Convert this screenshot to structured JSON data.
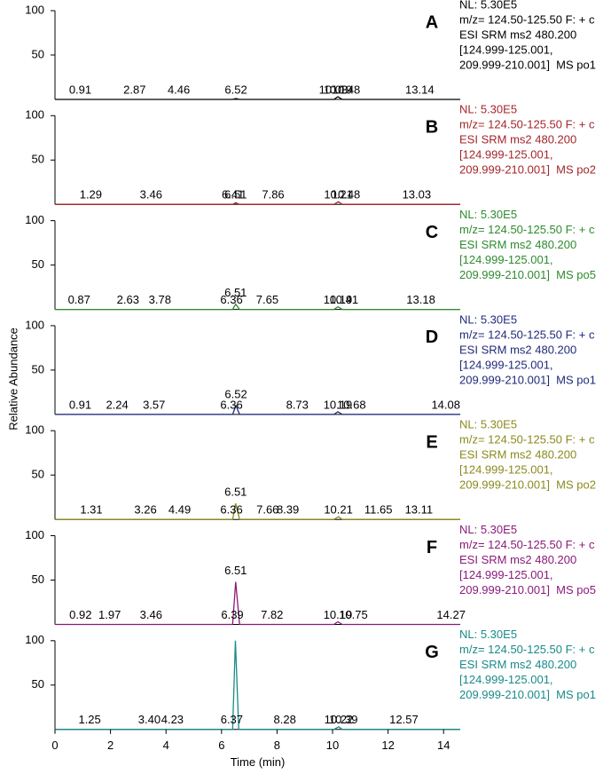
{
  "chart_data": [
    {
      "type": "line",
      "label": "A",
      "color": "#000000",
      "info": [
        "NL: 5.30E5",
        "m/z= 124.50-125.50 F: + c",
        "ESI SRM ms2 480.200",
        "[124.999-125.001,",
        "209.999-210.001]  MS po1"
      ],
      "peaks": [
        0.91,
        2.87,
        4.46,
        6.52,
        10.03,
        10.19,
        10.48,
        13.14
      ],
      "x": [
        0,
        6.4,
        6.52,
        6.65,
        10.05,
        10.19,
        10.35,
        14.6
      ],
      "values": [
        0,
        0,
        1,
        0,
        0,
        3,
        0,
        0
      ],
      "xlim": [
        0,
        14.6
      ],
      "ylim": [
        0,
        100
      ],
      "yticks": [
        50,
        100
      ]
    },
    {
      "type": "line",
      "label": "B",
      "color": "#a3262a",
      "info": [
        "NL: 5.30E5",
        "m/z= 124.50-125.50 F: + c",
        "ESI SRM ms2 480.200",
        "[124.999-125.001,",
        "209.999-210.001]  MS po2"
      ],
      "peaks": [
        1.29,
        3.46,
        6.41,
        6.51,
        7.86,
        10.21,
        10.48,
        13.03
      ],
      "x": [
        0,
        6.4,
        6.51,
        6.65,
        10.05,
        10.21,
        10.35,
        14.6
      ],
      "values": [
        0,
        0,
        2,
        0,
        0,
        3,
        0,
        0
      ],
      "xlim": [
        0,
        14.6
      ],
      "ylim": [
        0,
        100
      ],
      "yticks": [
        50,
        100
      ]
    },
    {
      "type": "line",
      "label": "C",
      "color": "#2e8b2e",
      "info": [
        "NL: 5.30E5",
        "m/z= 124.50-125.50 F: + c",
        "ESI SRM ms2 480.200",
        "[124.999-125.001,",
        "209.999-210.001]  MS po5"
      ],
      "peaks": [
        0.87,
        2.63,
        3.78,
        6.36,
        6.51,
        7.65,
        10.19,
        10.41,
        13.18
      ],
      "x": [
        0,
        6.4,
        6.51,
        6.65,
        10.05,
        10.19,
        10.35,
        14.6
      ],
      "values": [
        0,
        0,
        6,
        0,
        0,
        3,
        0,
        0
      ],
      "xlim": [
        0,
        14.6
      ],
      "ylim": [
        0,
        100
      ],
      "yticks": [
        50,
        100
      ]
    },
    {
      "type": "line",
      "label": "D",
      "color": "#1f2a7a",
      "info": [
        "NL: 5.30E5",
        "m/z= 124.50-125.50 F: + c",
        "ESI SRM ms2 480.200",
        "[124.999-125.001,",
        "209.999-210.001]  MS po1"
      ],
      "peaks": [
        0.91,
        2.24,
        3.57,
        6.36,
        6.52,
        8.73,
        10.19,
        10.68,
        14.08
      ],
      "x": [
        0,
        6.4,
        6.52,
        6.65,
        10.05,
        10.19,
        10.35,
        14.6
      ],
      "values": [
        0,
        0,
        10,
        0,
        0,
        3,
        0,
        0
      ],
      "xlim": [
        0,
        14.6
      ],
      "ylim": [
        0,
        100
      ],
      "yticks": [
        50,
        100
      ],
      "ylabel": "Relative Abundance"
    },
    {
      "type": "line",
      "label": "E",
      "color": "#8a8a1e",
      "info": [
        "NL: 5.30E5",
        "m/z= 124.50-125.50 F: + c",
        "ESI SRM ms2 480.200",
        "[124.999-125.001,",
        "209.999-210.001]  MS po2"
      ],
      "peaks": [
        1.31,
        3.26,
        4.49,
        6.36,
        6.51,
        7.66,
        8.39,
        10.21,
        11.65,
        13.11
      ],
      "x": [
        0,
        6.4,
        6.51,
        6.65,
        10.05,
        10.21,
        10.35,
        14.6
      ],
      "values": [
        0,
        0,
        18,
        0,
        0,
        3,
        0,
        0
      ],
      "xlim": [
        0,
        14.6
      ],
      "ylim": [
        0,
        100
      ],
      "yticks": [
        50,
        100
      ]
    },
    {
      "type": "line",
      "label": "F",
      "color": "#8b1a7a",
      "info": [
        "NL: 5.30E5",
        "m/z= 124.50-125.50 F: + c",
        "ESI SRM ms2 480.200",
        "[124.999-125.001,",
        "209.999-210.001]  MS po5"
      ],
      "peaks": [
        0.92,
        1.97,
        3.46,
        6.39,
        6.51,
        7.82,
        10.19,
        10.75,
        14.27
      ],
      "x": [
        0,
        6.4,
        6.51,
        6.65,
        10.05,
        10.19,
        10.35,
        14.6
      ],
      "values": [
        0,
        0,
        48,
        0,
        0,
        3,
        0,
        0
      ],
      "xlim": [
        0,
        14.6
      ],
      "ylim": [
        0,
        100
      ],
      "yticks": [
        50,
        100
      ]
    },
    {
      "type": "line",
      "label": "G",
      "color": "#1a8a8a",
      "info": [
        "NL: 5.30E5",
        "m/z= 124.50-125.50 F: + c",
        "ESI SRM ms2 480.200",
        "[124.999-125.001,",
        "209.999-210.001]  MS po1"
      ],
      "peaks": [
        1.25,
        3.4,
        4.23,
        6.37,
        8.28,
        10.22,
        10.39,
        12.57
      ],
      "x": [
        0,
        6.4,
        6.5,
        6.62,
        10.05,
        10.22,
        10.35,
        14.6
      ],
      "values": [
        0,
        0,
        100,
        0,
        0,
        3,
        0,
        0
      ],
      "xlim": [
        0,
        14.6
      ],
      "ylim": [
        0,
        100
      ],
      "yticks": [
        50,
        100
      ],
      "xticks": [
        0,
        2,
        4,
        6,
        8,
        10,
        12,
        14
      ],
      "xlabel": "Time (min)"
    }
  ]
}
